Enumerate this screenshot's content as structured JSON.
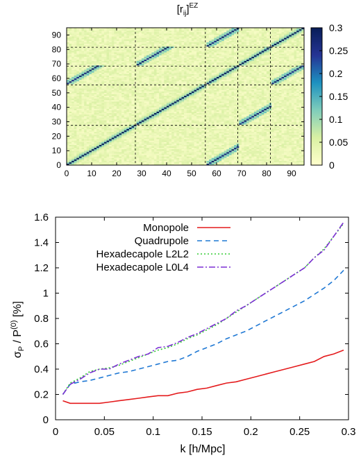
{
  "chart_data": [
    {
      "type": "heatmap",
      "title_main": "[r",
      "title_sub": "ij",
      "title_sup": "EZ",
      "x_ticks": [
        "0",
        "10",
        "20",
        "30",
        "40",
        "50",
        "60",
        "70",
        "80",
        "90"
      ],
      "y_ticks": [
        "0",
        "10",
        "20",
        "30",
        "40",
        "50",
        "60",
        "70",
        "80",
        "90"
      ],
      "xlim": [
        0,
        95
      ],
      "ylim": [
        0,
        95
      ],
      "block_boundaries": [
        27.5,
        55.5,
        68.5,
        81.5
      ],
      "block_sizes": [
        28,
        28,
        13,
        13,
        13
      ],
      "offdiagonal_blocks": [
        [
          0,
          2
        ],
        [
          1,
          3
        ],
        [
          2,
          4
        ]
      ],
      "colorbar": {
        "min": 0,
        "max": 0.3,
        "ticks": [
          "0",
          "0.05",
          "0.1",
          "0.15",
          "0.2",
          "0.25",
          "0.3"
        ],
        "colors": [
          "#ffffcc",
          "#d9f0a3",
          "#7fcdbb",
          "#1d91c0",
          "#253494",
          "#081d58"
        ]
      }
    },
    {
      "type": "line",
      "xlabel": "k [h/Mpc]",
      "ylabel_main": "σ",
      "ylabel_sub": "P",
      "ylabel_mid": " / P",
      "ylabel_sup": "(0)",
      "ylabel_tail": " [%]",
      "xlim": [
        0,
        0.3
      ],
      "ylim": [
        0,
        1.6
      ],
      "x_ticks": [
        "0",
        "0.05",
        "0.1",
        "0.15",
        "0.2",
        "0.25",
        "0.3"
      ],
      "y_ticks": [
        "0",
        "0.2",
        "0.4",
        "0.6",
        "0.8",
        "1",
        "1.2",
        "1.4",
        "1.6"
      ],
      "legend_position": "top-left",
      "series": [
        {
          "name": "Monopole",
          "color": "#e41a1c",
          "dash": "none",
          "x": [
            0.0075,
            0.015,
            0.025,
            0.035,
            0.045,
            0.055,
            0.065,
            0.075,
            0.085,
            0.095,
            0.105,
            0.115,
            0.125,
            0.135,
            0.145,
            0.155,
            0.165,
            0.175,
            0.185,
            0.195,
            0.205,
            0.215,
            0.225,
            0.235,
            0.245,
            0.255,
            0.265,
            0.275,
            0.285,
            0.295
          ],
          "values": [
            0.15,
            0.13,
            0.13,
            0.13,
            0.13,
            0.14,
            0.15,
            0.16,
            0.17,
            0.18,
            0.19,
            0.19,
            0.21,
            0.22,
            0.24,
            0.25,
            0.27,
            0.29,
            0.3,
            0.32,
            0.34,
            0.36,
            0.38,
            0.4,
            0.42,
            0.44,
            0.46,
            0.5,
            0.52,
            0.55
          ]
        },
        {
          "name": "Quadrupole",
          "color": "#1f78d4",
          "dash": "7,5",
          "x": [
            0.0075,
            0.015,
            0.025,
            0.035,
            0.045,
            0.055,
            0.065,
            0.075,
            0.085,
            0.095,
            0.105,
            0.115,
            0.125,
            0.135,
            0.145,
            0.155,
            0.165,
            0.175,
            0.185,
            0.195,
            0.205,
            0.215,
            0.225,
            0.235,
            0.245,
            0.255,
            0.265,
            0.275,
            0.285,
            0.295
          ],
          "values": [
            0.2,
            0.28,
            0.3,
            0.31,
            0.33,
            0.35,
            0.37,
            0.38,
            0.4,
            0.42,
            0.44,
            0.46,
            0.47,
            0.5,
            0.54,
            0.57,
            0.6,
            0.64,
            0.67,
            0.7,
            0.74,
            0.78,
            0.82,
            0.86,
            0.9,
            0.94,
            0.99,
            1.04,
            1.1,
            1.18
          ]
        },
        {
          "name": "Hexadecapole L2L2",
          "color": "#33cc33",
          "dash": "2,3",
          "x": [
            0.0075,
            0.015,
            0.025,
            0.035,
            0.045,
            0.055,
            0.065,
            0.075,
            0.085,
            0.095,
            0.105,
            0.115,
            0.125,
            0.135,
            0.145,
            0.155,
            0.165,
            0.175,
            0.185,
            0.195,
            0.205,
            0.215,
            0.225,
            0.235,
            0.245,
            0.255,
            0.265,
            0.275,
            0.285,
            0.295
          ],
          "values": [
            0.2,
            0.29,
            0.33,
            0.38,
            0.4,
            0.41,
            0.43,
            0.46,
            0.49,
            0.52,
            0.55,
            0.57,
            0.6,
            0.64,
            0.67,
            0.71,
            0.75,
            0.8,
            0.85,
            0.9,
            0.95,
            1.0,
            1.05,
            1.1,
            1.15,
            1.2,
            1.28,
            1.35,
            1.45,
            1.55
          ]
        },
        {
          "name": "Hexadecapole L0L4",
          "color": "#7b2fd4",
          "dash": "9,3,2,3",
          "x": [
            0.0075,
            0.015,
            0.025,
            0.035,
            0.045,
            0.055,
            0.065,
            0.075,
            0.085,
            0.095,
            0.105,
            0.115,
            0.125,
            0.135,
            0.145,
            0.155,
            0.165,
            0.175,
            0.185,
            0.195,
            0.205,
            0.215,
            0.225,
            0.235,
            0.245,
            0.255,
            0.265,
            0.275,
            0.285,
            0.295
          ],
          "values": [
            0.2,
            0.28,
            0.32,
            0.37,
            0.4,
            0.4,
            0.44,
            0.47,
            0.5,
            0.52,
            0.57,
            0.58,
            0.61,
            0.65,
            0.68,
            0.72,
            0.76,
            0.8,
            0.86,
            0.9,
            0.95,
            1.0,
            1.05,
            1.1,
            1.15,
            1.2,
            1.28,
            1.34,
            1.45,
            1.56
          ]
        }
      ]
    }
  ]
}
